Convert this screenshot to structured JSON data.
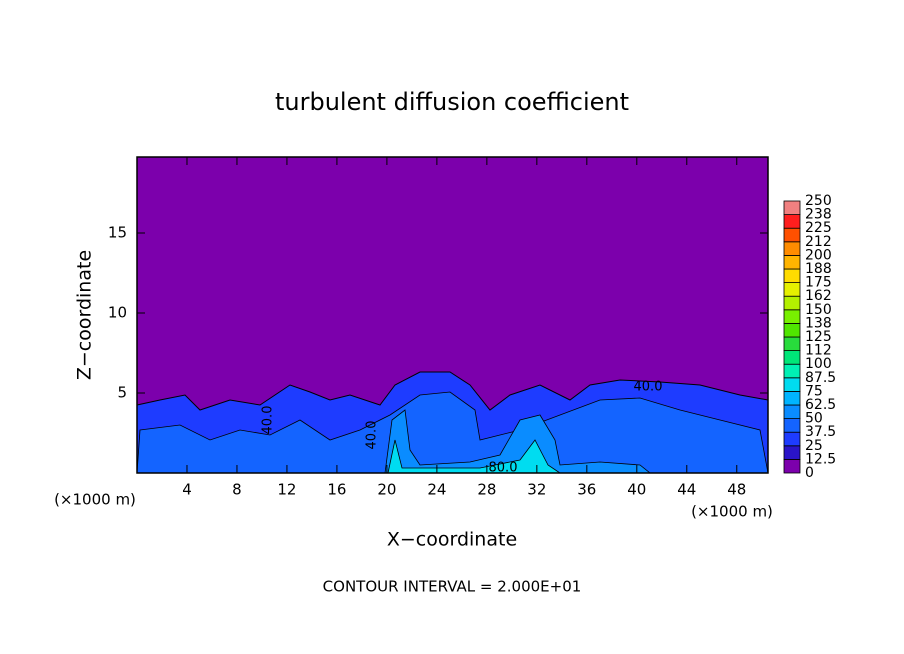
{
  "chart_data": {
    "type": "contour",
    "title": "turbulent diffusion coefficient",
    "xlabel": "X−coordinate",
    "ylabel": "Z−coordinate",
    "x_unit": "(×1000 m)",
    "footer": "CONTOUR INTERVAL = 2.000E+01",
    "xlim": [
      0,
      50.5
    ],
    "ylim": [
      0,
      19.75
    ],
    "xticks": [
      4,
      8,
      12,
      16,
      20,
      24,
      28,
      32,
      36,
      40,
      44,
      48
    ],
    "yticks": [
      5,
      10,
      15
    ],
    "contour_labels": [
      "40.0",
      "40.0",
      "40.0",
      "80.0"
    ],
    "colorbar": {
      "ticks": [
        0,
        12.5,
        25,
        37.5,
        50,
        62.5,
        75,
        87.5,
        100,
        112,
        125,
        138,
        150,
        162,
        175,
        188,
        200,
        212,
        225,
        238,
        250
      ],
      "colors": [
        "#7c00ac",
        "#2a14c8",
        "#1e3cff",
        "#1464ff",
        "#0a8cff",
        "#00b4ff",
        "#00dcf0",
        "#00f0b4",
        "#00e678",
        "#28dc3c",
        "#50e600",
        "#78f000",
        "#b4f000",
        "#e6f000",
        "#ffdc00",
        "#ffb400",
        "#ff8c00",
        "#ff5000",
        "#ff1e1e",
        "#f08080"
      ]
    }
  }
}
